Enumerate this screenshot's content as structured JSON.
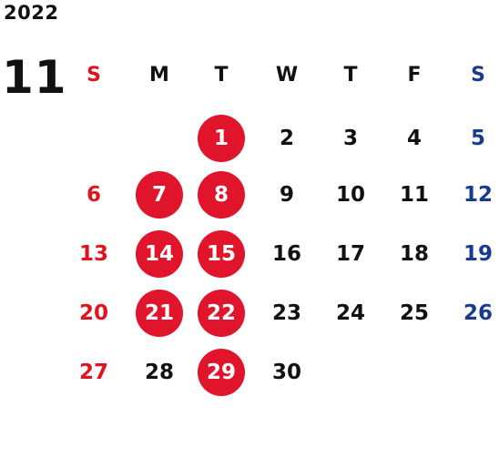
{
  "header": {
    "year": "2022",
    "month": "11"
  },
  "colors": {
    "text": "#111111",
    "sunday": "#e0141e",
    "saturday": "#1a3a8f",
    "holiday_circle": "#e0142b",
    "holiday_text": "#ffffff"
  },
  "weekdays": [
    {
      "label": "S",
      "kind": "sun"
    },
    {
      "label": "M",
      "kind": "normal"
    },
    {
      "label": "T",
      "kind": "normal"
    },
    {
      "label": "W",
      "kind": "normal"
    },
    {
      "label": "T",
      "kind": "normal"
    },
    {
      "label": "F",
      "kind": "normal"
    },
    {
      "label": "S",
      "kind": "sat"
    }
  ],
  "weeks": [
    [
      null,
      null,
      {
        "d": "1",
        "h": true
      },
      {
        "d": "2"
      },
      {
        "d": "3"
      },
      {
        "d": "4"
      },
      {
        "d": "5"
      }
    ],
    [
      {
        "d": "6"
      },
      {
        "d": "7",
        "h": true
      },
      {
        "d": "8",
        "h": true
      },
      {
        "d": "9"
      },
      {
        "d": "10"
      },
      {
        "d": "11"
      },
      {
        "d": "12"
      }
    ],
    [
      {
        "d": "13"
      },
      {
        "d": "14",
        "h": true
      },
      {
        "d": "15",
        "h": true
      },
      {
        "d": "16"
      },
      {
        "d": "17"
      },
      {
        "d": "18"
      },
      {
        "d": "19"
      }
    ],
    [
      {
        "d": "20"
      },
      {
        "d": "21",
        "h": true
      },
      {
        "d": "22",
        "h": true
      },
      {
        "d": "23"
      },
      {
        "d": "24"
      },
      {
        "d": "25"
      },
      {
        "d": "26"
      }
    ],
    [
      {
        "d": "27"
      },
      {
        "d": "28"
      },
      {
        "d": "29",
        "h": true
      },
      {
        "d": "30"
      },
      null,
      null,
      null
    ]
  ]
}
